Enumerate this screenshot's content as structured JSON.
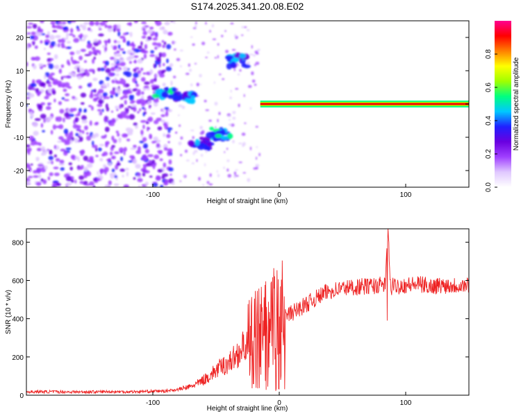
{
  "chart_data": [
    {
      "type": "heatmap",
      "title": "S174.2025.341.20.08.E02",
      "xlabel": "Height of straight line (km)",
      "ylabel": "Frequency (Hz)",
      "xlim": [
        -200,
        150
      ],
      "ylim": [
        -25,
        25
      ],
      "xticks": [
        -100,
        0,
        100
      ],
      "yticks": [
        -20,
        -10,
        0,
        10,
        20
      ],
      "colorbar": {
        "label": "Normalized spectral amplitude",
        "range": [
          0.0,
          1.0
        ],
        "ticks": [
          "0.0",
          "0.2",
          "0.4",
          "0.6",
          "0.8"
        ],
        "tick_values": [
          0.0,
          0.2,
          0.4,
          0.6,
          0.8
        ],
        "colors": [
          "#ffffff",
          "#e0c8ff",
          "#a040ff",
          "#6a00e0",
          "#2020ff",
          "#00c8ff",
          "#00ff80",
          "#a0ff00",
          "#ffff00",
          "#ff8000",
          "#ff0000",
          "#ff0090"
        ]
      },
      "features": [
        {
          "name": "noise field",
          "x_range": [
            -200,
            -85
          ],
          "y_range": [
            -25,
            25
          ],
          "level": 0.3
        },
        {
          "name": "blob A",
          "x": -90,
          "y": 3,
          "level": 0.5
        },
        {
          "name": "blob B",
          "x": -75,
          "y": 2,
          "level": 0.45
        },
        {
          "name": "blob C",
          "x": -62,
          "y": -12,
          "level": 0.4
        },
        {
          "name": "blob D",
          "x": -47,
          "y": -9,
          "level": 0.5
        },
        {
          "name": "blob E",
          "x": -32,
          "y": 13,
          "level": 0.45
        },
        {
          "name": "line segment",
          "x_range": [
            -15,
            150
          ],
          "y": 0,
          "level": 0.95
        }
      ]
    },
    {
      "type": "line",
      "xlabel": "Height of straight line (km)",
      "ylabel": "SNR (10 * v/v)",
      "xlim": [
        -200,
        150
      ],
      "ylim": [
        0,
        870
      ],
      "xticks": [
        -100,
        0,
        100
      ],
      "yticks": [
        0,
        200,
        400,
        600,
        800
      ],
      "color": "#ee2222",
      "series": [
        {
          "name": "SNR",
          "x": [
            -200,
            -180,
            -160,
            -140,
            -120,
            -100,
            -90,
            -80,
            -70,
            -65,
            -60,
            -55,
            -50,
            -45,
            -40,
            -35,
            -30,
            -25,
            -20,
            -15,
            -10,
            -5,
            0,
            5,
            10,
            15,
            20,
            25,
            30,
            35,
            40,
            50,
            60,
            70,
            80,
            84,
            86,
            88,
            90,
            100,
            110,
            120,
            130,
            140,
            150
          ],
          "values": [
            18,
            18,
            17,
            18,
            18,
            20,
            22,
            30,
            45,
            60,
            80,
            100,
            130,
            150,
            170,
            200,
            240,
            270,
            300,
            320,
            350,
            370,
            390,
            410,
            430,
            450,
            470,
            490,
            510,
            530,
            545,
            560,
            565,
            570,
            575,
            580,
            870,
            560,
            570,
            575,
            580,
            570,
            575,
            575,
            575
          ]
        }
      ]
    }
  ]
}
